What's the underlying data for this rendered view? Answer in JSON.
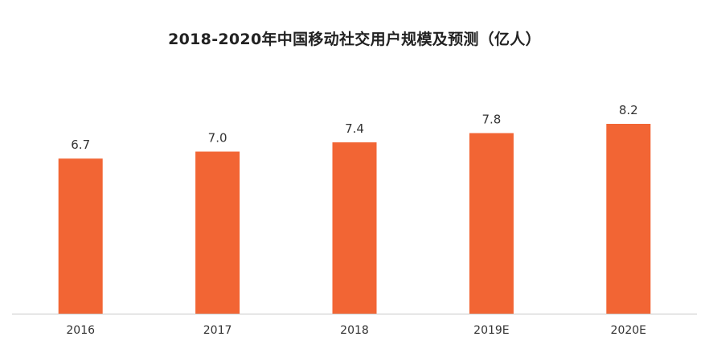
{
  "chart_data": {
    "type": "bar",
    "title": "2018-2020年中国移动社交用户规模及预测（亿人）",
    "categories": [
      "2016",
      "2017",
      "2018",
      "2019E",
      "2020E"
    ],
    "values": [
      6.7,
      7.0,
      7.4,
      7.8,
      8.2
    ],
    "data_labels": [
      "6.7",
      "7.0",
      "7.4",
      "7.8",
      "8.2"
    ],
    "xlabel": "",
    "ylabel": "",
    "ylim": [
      0,
      8.2
    ],
    "grid": false,
    "legend": "none",
    "colors": {
      "bar": "#f26534",
      "axis": "#c8c8c8",
      "text": "#333333"
    }
  }
}
